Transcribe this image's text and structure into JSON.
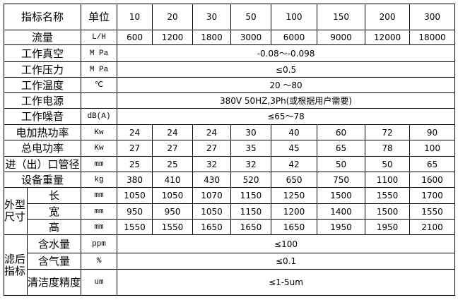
{
  "header": {
    "name": "指标名称",
    "unit": "单位",
    "models": [
      "10",
      "20",
      "30",
      "50",
      "100",
      "150",
      "200",
      "300"
    ]
  },
  "rows": [
    {
      "label": "流量",
      "unit": "L/H",
      "values": [
        "600",
        "1200",
        "1800",
        "3000",
        "6000",
        "9000",
        "12000",
        "18000"
      ]
    },
    {
      "label": "工作真空",
      "unit": "M Pa",
      "span": "-0.08～-0.098"
    },
    {
      "label": "工作压力",
      "unit": "M Pa",
      "span": "≤0.5"
    },
    {
      "label": "工作温度",
      "unit": "℃",
      "span": "20 ～80"
    },
    {
      "label": "工作电源",
      "unit": "",
      "span": "380V 50HZ,3Ph(或根据用户需要)"
    },
    {
      "label": "工作噪音",
      "unit": "dB(A)",
      "span": "≤65～78"
    },
    {
      "label": "电加热功率",
      "unit": "Kw",
      "values": [
        "24",
        "24",
        "24",
        "30",
        "40",
        "60",
        "72",
        "90"
      ]
    },
    {
      "label": "总电功率",
      "unit": "Kw",
      "values": [
        "27",
        "27",
        "27",
        "35",
        "45",
        "65",
        "78",
        "100"
      ]
    },
    {
      "label": "进（出）口管径",
      "unit": "mm",
      "values": [
        "25",
        "25",
        "32",
        "32",
        "42",
        "50",
        "50",
        "65"
      ]
    },
    {
      "label": "设备重量",
      "unit": "kg",
      "values": [
        "380",
        "410",
        "430",
        "520",
        "650",
        "750",
        "1100",
        "1600"
      ]
    }
  ],
  "dimensions": {
    "group": "外型尺寸",
    "rows": [
      {
        "label": "长",
        "unit": "mm",
        "values": [
          "1050",
          "1050",
          "1070",
          "1150",
          "1250",
          "1500",
          "1550",
          "1700"
        ]
      },
      {
        "label": "宽",
        "unit": "mm",
        "values": [
          "950",
          "950",
          "1050",
          "1150",
          "1200",
          "1400",
          "1500",
          "1550"
        ]
      },
      {
        "label": "高",
        "unit": "mm",
        "values": [
          "1550",
          "1550",
          "1650",
          "1650",
          "1650",
          "1950",
          "1950",
          "2100"
        ]
      }
    ]
  },
  "filtered": {
    "group": "滤后指标",
    "rows": [
      {
        "label": "含水量",
        "unit": "ppm",
        "span": "≤100"
      },
      {
        "label": "含气量",
        "unit": "%",
        "span": "≤0.1"
      },
      {
        "label": "清洁度精度",
        "unit": "um",
        "span": "≤1-5um"
      }
    ]
  }
}
